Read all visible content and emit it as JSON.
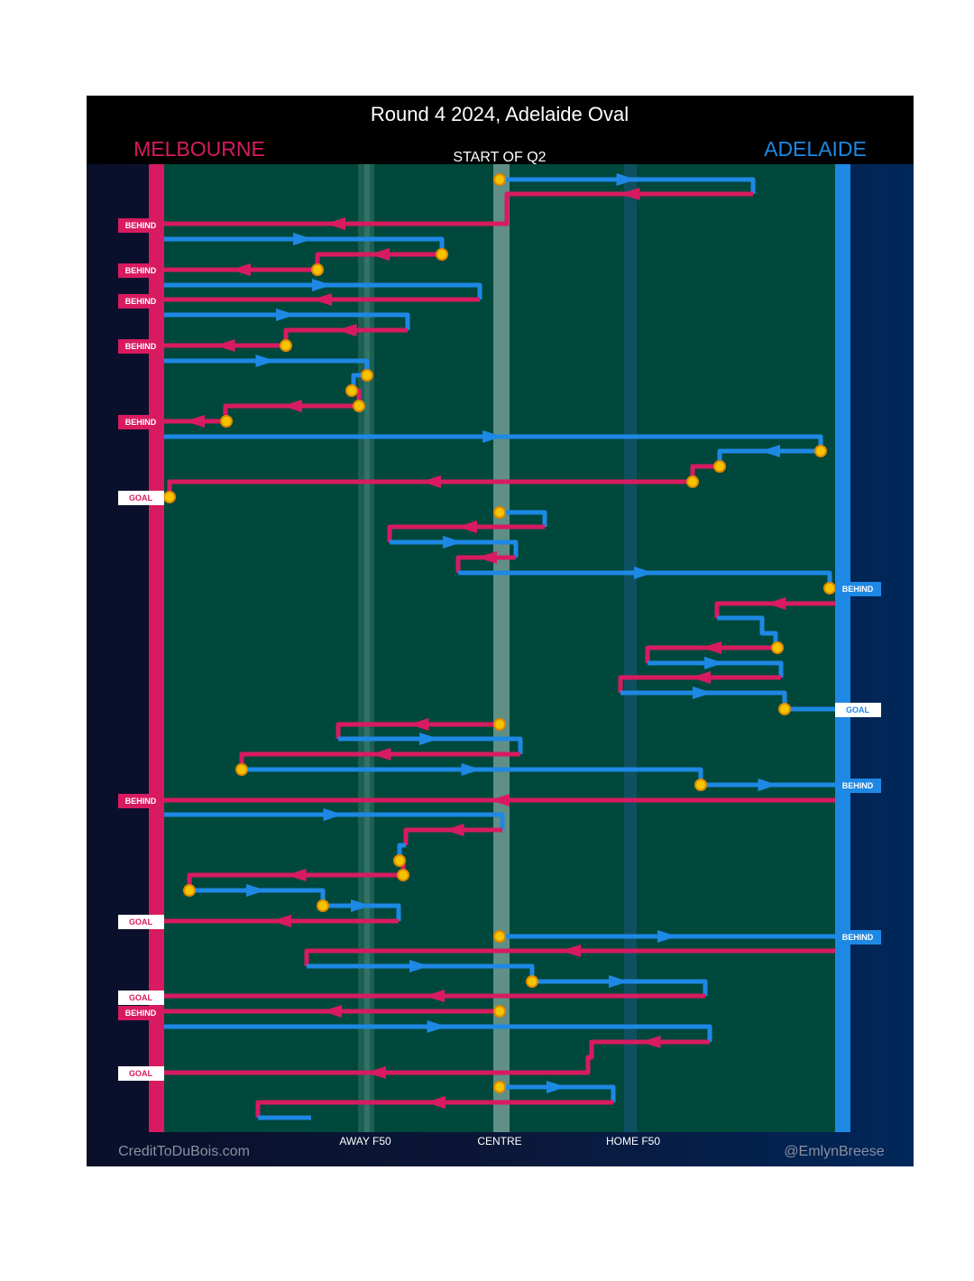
{
  "title": "Round 4 2024, Adelaide Oval",
  "teams": {
    "left": "MELBOURNE",
    "right": "ADELAIDE"
  },
  "period": "START OF Q2",
  "outcomes": [
    "BEHIND",
    "BEHIND",
    "BEHIND",
    "BEHIND",
    "BEHIND",
    "GOAL",
    "BEHIND",
    "GOAL",
    "BEHIND",
    "BEHIND",
    "GOAL",
    "BEHIND",
    "GOAL",
    "BEHIND",
    "GOAL"
  ],
  "field_labels": [
    "AWAY F50",
    "CENTRE",
    "HOME F50"
  ],
  "credits": {
    "left": "CreditToDuBois.com",
    "right": "@EmlynBreese"
  }
}
